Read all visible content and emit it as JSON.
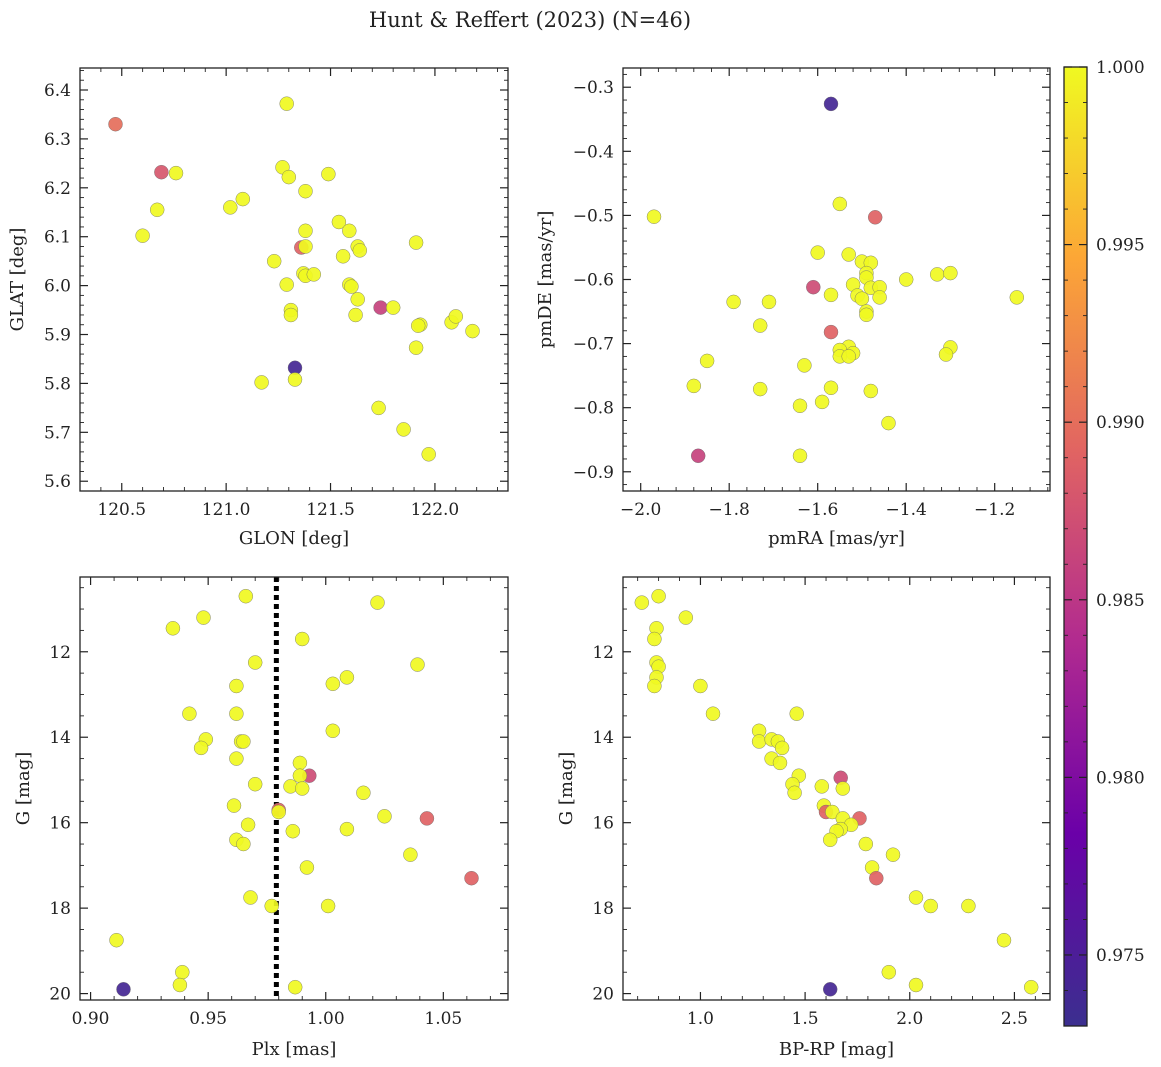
{
  "figure": {
    "title": "Hunt & Reffert (2023) (N=46)"
  },
  "colorbar": {
    "min": 0.973,
    "max": 1.0,
    "ticks": [
      0.975,
      0.98,
      0.985,
      0.99,
      0.995,
      1.0
    ],
    "tick_labels": [
      "0.975",
      "0.980",
      "0.985",
      "0.990",
      "0.995",
      "1.000"
    ],
    "colormap": "plasma",
    "colors": [
      "#0d0887",
      "#6a00a8",
      "#b12a90",
      "#e16462",
      "#fca636",
      "#f0f921"
    ]
  },
  "chart_data": [
    {
      "type": "scatter",
      "xlabel": "GLON [deg]",
      "ylabel": "GLAT [deg]",
      "xlim": [
        120.3,
        122.35
      ],
      "ylim": [
        5.58,
        6.445
      ],
      "y_inverted": false,
      "xticks": [
        120.5,
        121.0,
        121.5,
        122.0
      ],
      "xtick_labels": [
        "120.5",
        "121.0",
        "121.5",
        "122.0"
      ],
      "yticks": [
        5.6,
        5.7,
        5.8,
        5.9,
        6.0,
        6.1,
        6.2,
        6.3,
        6.4
      ],
      "ytick_labels": [
        "5.6",
        "5.7",
        "5.8",
        "5.9",
        "6.0",
        "6.1",
        "6.2",
        "6.3",
        "6.4"
      ],
      "grid": false,
      "points": [
        {
          "x": 120.47,
          "y": 6.33,
          "c": 0.99
        },
        {
          "x": 120.69,
          "y": 6.232,
          "c": 0.988
        },
        {
          "x": 120.76,
          "y": 6.23,
          "c": 1.0
        },
        {
          "x": 120.67,
          "y": 6.155,
          "c": 1.0
        },
        {
          "x": 120.6,
          "y": 6.102,
          "c": 1.0
        },
        {
          "x": 121.02,
          "y": 6.16,
          "c": 1.0
        },
        {
          "x": 121.08,
          "y": 6.177,
          "c": 1.0
        },
        {
          "x": 121.29,
          "y": 6.372,
          "c": 1.0
        },
        {
          "x": 121.27,
          "y": 6.242,
          "c": 1.0
        },
        {
          "x": 121.3,
          "y": 6.222,
          "c": 1.0
        },
        {
          "x": 121.38,
          "y": 6.193,
          "c": 1.0
        },
        {
          "x": 121.49,
          "y": 6.228,
          "c": 1.0
        },
        {
          "x": 121.54,
          "y": 6.13,
          "c": 1.0
        },
        {
          "x": 121.59,
          "y": 6.112,
          "c": 1.0
        },
        {
          "x": 121.38,
          "y": 6.112,
          "c": 1.0
        },
        {
          "x": 121.36,
          "y": 6.078,
          "c": 0.989
        },
        {
          "x": 121.38,
          "y": 6.08,
          "c": 1.0
        },
        {
          "x": 121.23,
          "y": 6.05,
          "c": 1.0
        },
        {
          "x": 121.63,
          "y": 6.08,
          "c": 1.0
        },
        {
          "x": 121.64,
          "y": 6.072,
          "c": 1.0
        },
        {
          "x": 121.56,
          "y": 6.06,
          "c": 1.0
        },
        {
          "x": 121.37,
          "y": 6.025,
          "c": 1.0
        },
        {
          "x": 121.38,
          "y": 6.02,
          "c": 1.0
        },
        {
          "x": 121.42,
          "y": 6.023,
          "c": 1.0
        },
        {
          "x": 121.29,
          "y": 6.002,
          "c": 1.0
        },
        {
          "x": 121.59,
          "y": 6.002,
          "c": 1.0
        },
        {
          "x": 121.6,
          "y": 5.998,
          "c": 1.0
        },
        {
          "x": 121.63,
          "y": 5.972,
          "c": 1.0
        },
        {
          "x": 121.31,
          "y": 5.95,
          "c": 1.0
        },
        {
          "x": 121.31,
          "y": 5.94,
          "c": 1.0
        },
        {
          "x": 121.62,
          "y": 5.94,
          "c": 1.0
        },
        {
          "x": 121.74,
          "y": 5.955,
          "c": 0.986
        },
        {
          "x": 121.8,
          "y": 5.955,
          "c": 1.0
        },
        {
          "x": 121.91,
          "y": 6.088,
          "c": 1.0
        },
        {
          "x": 121.93,
          "y": 5.92,
          "c": 1.0
        },
        {
          "x": 121.92,
          "y": 5.918,
          "c": 1.0
        },
        {
          "x": 122.08,
          "y": 5.925,
          "c": 1.0
        },
        {
          "x": 122.1,
          "y": 5.937,
          "c": 1.0
        },
        {
          "x": 122.18,
          "y": 5.907,
          "c": 1.0
        },
        {
          "x": 121.91,
          "y": 5.873,
          "c": 1.0
        },
        {
          "x": 121.33,
          "y": 5.832,
          "c": 0.974
        },
        {
          "x": 121.33,
          "y": 5.808,
          "c": 1.0
        },
        {
          "x": 121.17,
          "y": 5.802,
          "c": 1.0
        },
        {
          "x": 121.73,
          "y": 5.75,
          "c": 1.0
        },
        {
          "x": 121.85,
          "y": 5.706,
          "c": 1.0
        },
        {
          "x": 121.97,
          "y": 5.655,
          "c": 1.0
        }
      ]
    },
    {
      "type": "scatter",
      "xlabel": "pmRA [mas/yr]",
      "ylabel": "pmDE [mas/yr]",
      "xlim": [
        -2.04,
        -1.075
      ],
      "ylim": [
        -0.93,
        -0.27
      ],
      "y_inverted": false,
      "xticks": [
        -2.0,
        -1.8,
        -1.6,
        -1.4,
        -1.2
      ],
      "xtick_labels": [
        "−2.0",
        "−1.8",
        "−1.6",
        "−1.4",
        "−1.2"
      ],
      "yticks": [
        -0.9,
        -0.8,
        -0.7,
        -0.6,
        -0.5,
        -0.4,
        -0.3
      ],
      "ytick_labels": [
        "−0.9",
        "−0.8",
        "−0.7",
        "−0.6",
        "−0.5",
        "−0.4",
        "−0.3"
      ],
      "grid": false,
      "points": [
        {
          "x": -1.57,
          "y": -0.326,
          "c": 0.974
        },
        {
          "x": -1.97,
          "y": -0.502,
          "c": 1.0
        },
        {
          "x": -1.55,
          "y": -0.482,
          "c": 1.0
        },
        {
          "x": -1.47,
          "y": -0.503,
          "c": 0.989
        },
        {
          "x": -1.6,
          "y": -0.558,
          "c": 1.0
        },
        {
          "x": -1.53,
          "y": -0.561,
          "c": 1.0
        },
        {
          "x": -1.5,
          "y": -0.572,
          "c": 1.0
        },
        {
          "x": -1.48,
          "y": -0.574,
          "c": 1.0
        },
        {
          "x": -1.49,
          "y": -0.59,
          "c": 1.0
        },
        {
          "x": -1.49,
          "y": -0.597,
          "c": 1.0
        },
        {
          "x": -1.4,
          "y": -0.6,
          "c": 1.0
        },
        {
          "x": -1.33,
          "y": -0.592,
          "c": 1.0
        },
        {
          "x": -1.3,
          "y": -0.59,
          "c": 1.0
        },
        {
          "x": -1.15,
          "y": -0.628,
          "c": 1.0
        },
        {
          "x": -1.61,
          "y": -0.612,
          "c": 0.987
        },
        {
          "x": -1.52,
          "y": -0.608,
          "c": 1.0
        },
        {
          "x": -1.48,
          "y": -0.613,
          "c": 1.0
        },
        {
          "x": -1.46,
          "y": -0.612,
          "c": 1.0
        },
        {
          "x": -1.51,
          "y": -0.625,
          "c": 1.0
        },
        {
          "x": -1.5,
          "y": -0.63,
          "c": 1.0
        },
        {
          "x": -1.46,
          "y": -0.628,
          "c": 1.0
        },
        {
          "x": -1.57,
          "y": -0.624,
          "c": 1.0
        },
        {
          "x": -1.79,
          "y": -0.635,
          "c": 1.0
        },
        {
          "x": -1.71,
          "y": -0.635,
          "c": 1.0
        },
        {
          "x": -1.49,
          "y": -0.65,
          "c": 1.0
        },
        {
          "x": -1.49,
          "y": -0.655,
          "c": 1.0
        },
        {
          "x": -1.73,
          "y": -0.672,
          "c": 1.0
        },
        {
          "x": -1.57,
          "y": -0.682,
          "c": 0.989
        },
        {
          "x": -1.53,
          "y": -0.705,
          "c": 1.0
        },
        {
          "x": -1.55,
          "y": -0.71,
          "c": 1.0
        },
        {
          "x": -1.52,
          "y": -0.715,
          "c": 1.0
        },
        {
          "x": -1.55,
          "y": -0.72,
          "c": 1.0
        },
        {
          "x": -1.53,
          "y": -0.72,
          "c": 1.0
        },
        {
          "x": -1.3,
          "y": -0.706,
          "c": 1.0
        },
        {
          "x": -1.31,
          "y": -0.717,
          "c": 1.0
        },
        {
          "x": -1.85,
          "y": -0.727,
          "c": 1.0
        },
        {
          "x": -1.63,
          "y": -0.734,
          "c": 1.0
        },
        {
          "x": -1.88,
          "y": -0.766,
          "c": 1.0
        },
        {
          "x": -1.73,
          "y": -0.771,
          "c": 1.0
        },
        {
          "x": -1.57,
          "y": -0.769,
          "c": 1.0
        },
        {
          "x": -1.48,
          "y": -0.774,
          "c": 1.0
        },
        {
          "x": -1.59,
          "y": -0.791,
          "c": 1.0
        },
        {
          "x": -1.64,
          "y": -0.797,
          "c": 1.0
        },
        {
          "x": -1.44,
          "y": -0.824,
          "c": 1.0
        },
        {
          "x": -1.87,
          "y": -0.875,
          "c": 0.986
        },
        {
          "x": -1.64,
          "y": -0.875,
          "c": 1.0
        }
      ]
    },
    {
      "type": "scatter",
      "xlabel": "Plx [mas]",
      "ylabel": "G [mag]",
      "xlim": [
        0.8955,
        1.0775
      ],
      "ylim": [
        10.25,
        20.15
      ],
      "y_inverted": true,
      "xticks": [
        0.9,
        0.95,
        1.0,
        1.05
      ],
      "xtick_labels": [
        "0.90",
        "0.95",
        "1.00",
        "1.05"
      ],
      "yticks": [
        12,
        14,
        16,
        18,
        20
      ],
      "ytick_labels": [
        "12",
        "14",
        "16",
        "18",
        "20"
      ],
      "grid": false,
      "reference_line": {
        "axis": "x",
        "value": 0.979,
        "style": "dotted",
        "color": "#000000"
      },
      "points": [
        {
          "x": 0.966,
          "y": 10.7,
          "c": 1.0
        },
        {
          "x": 1.022,
          "y": 10.85,
          "c": 1.0
        },
        {
          "x": 0.948,
          "y": 11.2,
          "c": 1.0
        },
        {
          "x": 0.935,
          "y": 11.45,
          "c": 1.0
        },
        {
          "x": 0.99,
          "y": 11.7,
          "c": 1.0
        },
        {
          "x": 0.97,
          "y": 12.25,
          "c": 1.0
        },
        {
          "x": 1.039,
          "y": 12.3,
          "c": 1.0
        },
        {
          "x": 1.009,
          "y": 12.6,
          "c": 1.0
        },
        {
          "x": 1.003,
          "y": 12.75,
          "c": 1.0
        },
        {
          "x": 0.962,
          "y": 12.8,
          "c": 1.0
        },
        {
          "x": 0.942,
          "y": 13.45,
          "c": 1.0
        },
        {
          "x": 0.962,
          "y": 13.45,
          "c": 1.0
        },
        {
          "x": 1.003,
          "y": 13.85,
          "c": 1.0
        },
        {
          "x": 0.949,
          "y": 14.05,
          "c": 1.0
        },
        {
          "x": 0.964,
          "y": 14.1,
          "c": 1.0
        },
        {
          "x": 0.965,
          "y": 14.1,
          "c": 1.0
        },
        {
          "x": 0.947,
          "y": 14.25,
          "c": 1.0
        },
        {
          "x": 0.962,
          "y": 14.5,
          "c": 1.0
        },
        {
          "x": 0.989,
          "y": 14.6,
          "c": 1.0
        },
        {
          "x": 0.993,
          "y": 14.9,
          "c": 0.987
        },
        {
          "x": 0.989,
          "y": 14.9,
          "c": 1.0
        },
        {
          "x": 0.97,
          "y": 15.1,
          "c": 1.0
        },
        {
          "x": 0.985,
          "y": 15.15,
          "c": 1.0
        },
        {
          "x": 0.99,
          "y": 15.2,
          "c": 1.0
        },
        {
          "x": 1.016,
          "y": 15.3,
          "c": 1.0
        },
        {
          "x": 0.961,
          "y": 15.6,
          "c": 1.0
        },
        {
          "x": 0.98,
          "y": 15.7,
          "c": 0.989
        },
        {
          "x": 0.98,
          "y": 15.75,
          "c": 1.0
        },
        {
          "x": 1.025,
          "y": 15.85,
          "c": 1.0
        },
        {
          "x": 1.043,
          "y": 15.9,
          "c": 0.989
        },
        {
          "x": 0.967,
          "y": 16.05,
          "c": 1.0
        },
        {
          "x": 1.009,
          "y": 16.15,
          "c": 1.0
        },
        {
          "x": 0.986,
          "y": 16.2,
          "c": 1.0
        },
        {
          "x": 0.962,
          "y": 16.4,
          "c": 1.0
        },
        {
          "x": 0.965,
          "y": 16.5,
          "c": 1.0
        },
        {
          "x": 1.036,
          "y": 16.75,
          "c": 1.0
        },
        {
          "x": 0.992,
          "y": 17.05,
          "c": 1.0
        },
        {
          "x": 1.062,
          "y": 17.3,
          "c": 0.989
        },
        {
          "x": 0.968,
          "y": 17.75,
          "c": 1.0
        },
        {
          "x": 0.977,
          "y": 17.95,
          "c": 1.0
        },
        {
          "x": 1.001,
          "y": 17.95,
          "c": 1.0
        },
        {
          "x": 0.911,
          "y": 18.75,
          "c": 1.0
        },
        {
          "x": 0.939,
          "y": 19.5,
          "c": 1.0
        },
        {
          "x": 0.938,
          "y": 19.8,
          "c": 1.0
        },
        {
          "x": 0.987,
          "y": 19.85,
          "c": 1.0
        },
        {
          "x": 0.914,
          "y": 19.9,
          "c": 0.974
        }
      ]
    },
    {
      "type": "scatter",
      "xlabel": "BP-RP [mag]",
      "ylabel": "G [mag]",
      "xlim": [
        0.63,
        2.67
      ],
      "ylim": [
        10.25,
        20.15
      ],
      "y_inverted": true,
      "xticks": [
        1.0,
        1.5,
        2.0,
        2.5
      ],
      "xtick_labels": [
        "1.0",
        "1.5",
        "2.0",
        "2.5"
      ],
      "yticks": [
        12,
        14,
        16,
        18,
        20
      ],
      "ytick_labels": [
        "12",
        "14",
        "16",
        "18",
        "20"
      ],
      "grid": false,
      "points": [
        {
          "x": 0.72,
          "y": 10.85,
          "c": 1.0
        },
        {
          "x": 0.8,
          "y": 10.7,
          "c": 1.0
        },
        {
          "x": 0.93,
          "y": 11.2,
          "c": 1.0
        },
        {
          "x": 0.79,
          "y": 11.45,
          "c": 1.0
        },
        {
          "x": 0.78,
          "y": 11.7,
          "c": 1.0
        },
        {
          "x": 0.79,
          "y": 12.25,
          "c": 1.0
        },
        {
          "x": 0.8,
          "y": 12.35,
          "c": 1.0
        },
        {
          "x": 0.79,
          "y": 12.6,
          "c": 1.0
        },
        {
          "x": 0.78,
          "y": 12.8,
          "c": 1.0
        },
        {
          "x": 1.0,
          "y": 12.8,
          "c": 1.0
        },
        {
          "x": 1.06,
          "y": 13.45,
          "c": 1.0
        },
        {
          "x": 1.46,
          "y": 13.45,
          "c": 1.0
        },
        {
          "x": 1.28,
          "y": 13.85,
          "c": 1.0
        },
        {
          "x": 1.28,
          "y": 14.1,
          "c": 1.0
        },
        {
          "x": 1.34,
          "y": 14.05,
          "c": 1.0
        },
        {
          "x": 1.37,
          "y": 14.1,
          "c": 1.0
        },
        {
          "x": 1.39,
          "y": 14.25,
          "c": 1.0
        },
        {
          "x": 1.34,
          "y": 14.5,
          "c": 1.0
        },
        {
          "x": 1.38,
          "y": 14.6,
          "c": 1.0
        },
        {
          "x": 1.47,
          "y": 14.9,
          "c": 1.0
        },
        {
          "x": 1.67,
          "y": 14.95,
          "c": 0.987
        },
        {
          "x": 1.44,
          "y": 15.1,
          "c": 1.0
        },
        {
          "x": 1.68,
          "y": 15.2,
          "c": 1.0
        },
        {
          "x": 1.45,
          "y": 15.3,
          "c": 1.0
        },
        {
          "x": 1.58,
          "y": 15.15,
          "c": 1.0
        },
        {
          "x": 1.59,
          "y": 15.6,
          "c": 1.0
        },
        {
          "x": 1.6,
          "y": 15.75,
          "c": 0.989
        },
        {
          "x": 1.63,
          "y": 15.75,
          "c": 1.0
        },
        {
          "x": 1.76,
          "y": 15.9,
          "c": 0.989
        },
        {
          "x": 1.68,
          "y": 15.9,
          "c": 1.0
        },
        {
          "x": 1.72,
          "y": 16.05,
          "c": 1.0
        },
        {
          "x": 1.67,
          "y": 16.15,
          "c": 1.0
        },
        {
          "x": 1.65,
          "y": 16.2,
          "c": 1.0
        },
        {
          "x": 1.62,
          "y": 16.4,
          "c": 1.0
        },
        {
          "x": 1.79,
          "y": 16.5,
          "c": 1.0
        },
        {
          "x": 1.92,
          "y": 16.75,
          "c": 1.0
        },
        {
          "x": 1.82,
          "y": 17.05,
          "c": 1.0
        },
        {
          "x": 1.84,
          "y": 17.3,
          "c": 0.989
        },
        {
          "x": 2.03,
          "y": 17.75,
          "c": 1.0
        },
        {
          "x": 2.1,
          "y": 17.95,
          "c": 1.0
        },
        {
          "x": 2.28,
          "y": 17.95,
          "c": 1.0
        },
        {
          "x": 2.45,
          "y": 18.75,
          "c": 1.0
        },
        {
          "x": 1.9,
          "y": 19.5,
          "c": 1.0
        },
        {
          "x": 2.03,
          "y": 19.8,
          "c": 1.0
        },
        {
          "x": 2.58,
          "y": 19.85,
          "c": 1.0
        },
        {
          "x": 1.62,
          "y": 19.9,
          "c": 0.974
        }
      ]
    }
  ]
}
